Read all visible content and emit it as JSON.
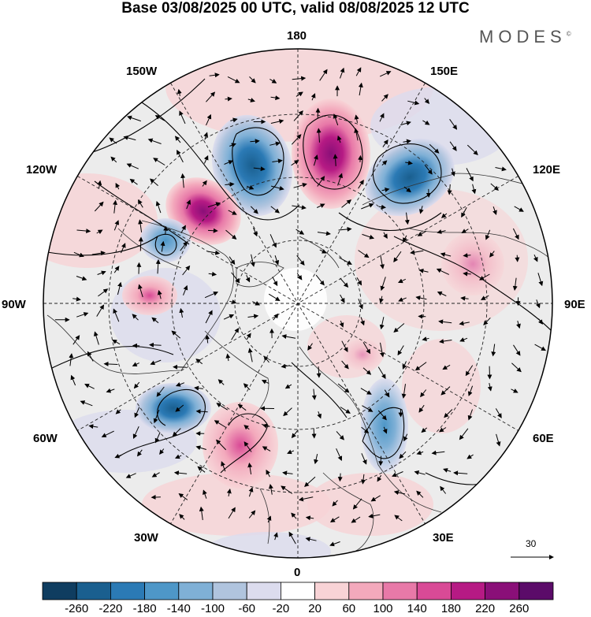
{
  "title": "Base 03/08/2025 00 UTC, valid 08/08/2025 12 UTC",
  "logo": {
    "text": "MODES",
    "mark": "©"
  },
  "longitude_labels": {
    "lon_180": "180",
    "lon_150e": "150E",
    "lon_120e": "120E",
    "lon_90e": "90E",
    "lon_60e": "60E",
    "lon_30e": "30E",
    "lon_0": "0",
    "lon_30w": "30W",
    "lon_60w": "60W",
    "lon_90w": "90W",
    "lon_120w": "120W",
    "lon_150w": "150W"
  },
  "reference_vector_label": "30",
  "colorbar": {
    "labels": [
      "-260",
      "-220",
      "-180",
      "-140",
      "-100",
      "-60",
      "-20",
      "20",
      "60",
      "100",
      "140",
      "180",
      "220",
      "260"
    ],
    "colors": [
      "#0f3d60",
      "#1a5f8f",
      "#2b7ab5",
      "#4e97c8",
      "#7fb0d6",
      "#b0c4de",
      "#dcdcee",
      "#ffffff",
      "#f8d3d6",
      "#f3a9bc",
      "#e879a8",
      "#d94a96",
      "#b61a84",
      "#8a0f78",
      "#5b0b69"
    ]
  }
}
